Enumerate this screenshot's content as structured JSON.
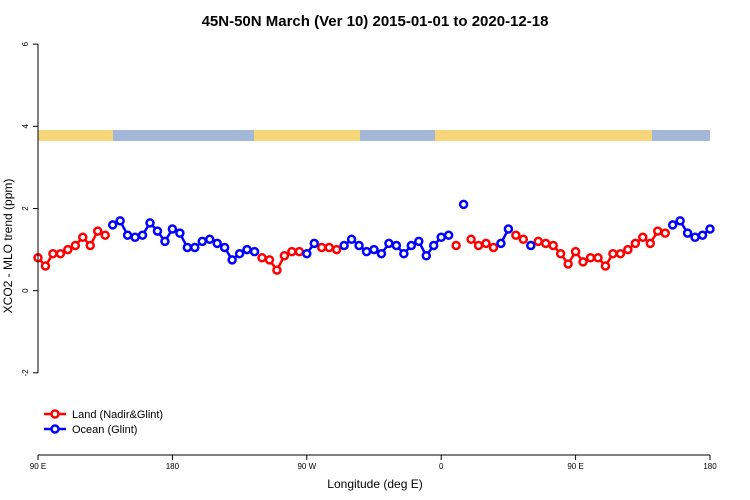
{
  "chart_data": {
    "type": "line",
    "title": "45N-50N March (Ver 10)   2015-01-01 to 2020-12-18",
    "x_label": "Longitude (deg E)",
    "y_label": "XCO2 - MLO trend (ppm)",
    "x": [
      90,
      95,
      100,
      105,
      110,
      115,
      120,
      125,
      130,
      135,
      140,
      145,
      150,
      155,
      160,
      165,
      170,
      175,
      180,
      185,
      190,
      195,
      200,
      205,
      210,
      215,
      220,
      225,
      230,
      235,
      240,
      245,
      250,
      255,
      260,
      265,
      270,
      275,
      280,
      285,
      290,
      295,
      300,
      305,
      310,
      315,
      320,
      325,
      330,
      335,
      340,
      345,
      350,
      355,
      360,
      365,
      370,
      375,
      380,
      385,
      390,
      395,
      400,
      405,
      410,
      415,
      420,
      425,
      430,
      435,
      440,
      445,
      450,
      455,
      460,
      465,
      470,
      475,
      480,
      485,
      490,
      495,
      500,
      505,
      510,
      515,
      520,
      525,
      530,
      535,
      540
    ],
    "series": [
      {
        "name": "Land (Nadir&Glint)",
        "color": "#ff0000",
        "values": [
          0.8,
          0.6,
          0.9,
          0.9,
          1.0,
          1.1,
          1.3,
          1.1,
          1.45,
          1.35,
          null,
          null,
          null,
          null,
          null,
          null,
          null,
          null,
          null,
          null,
          null,
          null,
          null,
          null,
          null,
          null,
          null,
          null,
          null,
          null,
          0.8,
          0.75,
          0.5,
          0.85,
          0.95,
          0.95,
          null,
          null,
          1.05,
          1.05,
          1.0,
          null,
          null,
          null,
          null,
          null,
          null,
          null,
          null,
          null,
          null,
          null,
          null,
          null,
          null,
          null,
          1.1,
          null,
          1.25,
          1.1,
          1.15,
          1.05,
          null,
          null,
          1.35,
          1.25,
          null,
          1.2,
          1.15,
          1.1,
          0.9,
          0.65,
          0.95,
          0.7,
          0.8,
          0.8,
          0.6,
          0.9,
          0.9,
          1.0,
          1.15,
          1.3,
          1.15,
          1.45,
          1.4,
          null,
          null,
          null,
          null,
          null,
          null
        ]
      },
      {
        "name": "Ocean (Glint)",
        "color": "#0000ff",
        "values": [
          null,
          null,
          null,
          null,
          null,
          null,
          null,
          null,
          null,
          null,
          1.6,
          1.7,
          1.35,
          1.3,
          1.35,
          1.65,
          1.45,
          1.2,
          1.5,
          1.4,
          1.05,
          1.05,
          1.2,
          1.25,
          1.15,
          1.05,
          0.75,
          0.9,
          1.0,
          0.95,
          null,
          null,
          null,
          null,
          null,
          null,
          0.9,
          1.15,
          null,
          null,
          null,
          1.1,
          1.25,
          1.1,
          0.95,
          1.0,
          0.9,
          1.15,
          1.1,
          0.9,
          1.1,
          1.2,
          0.85,
          1.1,
          1.3,
          1.35,
          null,
          2.1,
          null,
          null,
          null,
          null,
          1.15,
          1.5,
          null,
          null,
          1.1,
          null,
          null,
          null,
          null,
          null,
          null,
          null,
          null,
          null,
          null,
          null,
          null,
          null,
          null,
          null,
          null,
          null,
          null,
          1.6,
          1.7,
          1.4,
          1.3,
          1.35,
          1.5
        ]
      }
    ],
    "xlim": [
      90,
      540
    ],
    "xticks": [
      {
        "value": 90,
        "label": "90 E"
      },
      180,
      {
        "value": 270,
        "label": "90 W"
      },
      {
        "value": 360,
        "label": "0"
      },
      {
        "value": 450,
        "label": "90 E"
      },
      {
        "value": 540,
        "label": "180"
      }
    ],
    "ylim": [
      -4,
      6.15
    ],
    "yticks": [
      -2,
      0,
      2,
      4,
      6
    ],
    "legend": "bottomleft"
  }
}
